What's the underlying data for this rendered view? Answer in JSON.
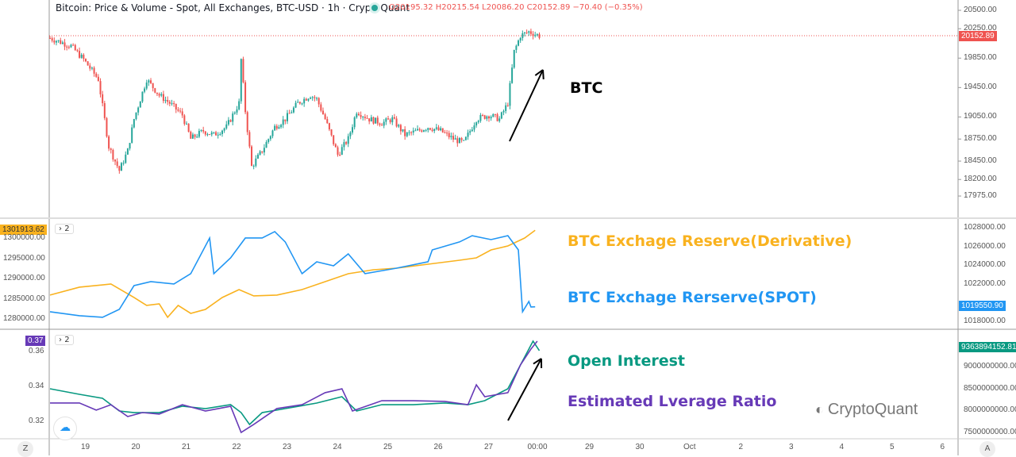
{
  "header": {
    "title": "Bitcoin: Price & Volume - Spot, All Exchanges, BTC-USD · 1h · CryptoQuant",
    "ohlc": "O20195.32 H20215.54 L20086.20 C20152.89 −70.40 (−0.35%)"
  },
  "colors": {
    "up": "#26a69a",
    "down": "#ef5350",
    "derivative": "#f9b21f",
    "spot": "#2196f3",
    "oi": "#089981",
    "ratio": "#673ab7"
  },
  "price_pane": {
    "axis": [
      "20500.00",
      "20250.00",
      "19850.00",
      "19450.00",
      "19050.00",
      "18750.00",
      "18450.00",
      "18200.00",
      "17975.00"
    ],
    "last": "20152.89",
    "annotation": "BTC",
    "keypoints": [
      [
        "18 07",
        20122
      ],
      [
        "18 17",
        20015
      ],
      [
        "18 23",
        19831
      ],
      [
        "19 06",
        19562
      ],
      [
        "19 11",
        18645
      ],
      [
        "19 16",
        18321
      ],
      [
        "19 20",
        18591
      ],
      [
        "19 23",
        19022
      ],
      [
        "20 05",
        19562
      ],
      [
        "20 11",
        19346
      ],
      [
        "20 16",
        19238
      ],
      [
        "20 22",
        19076
      ],
      [
        "21 02",
        18752
      ],
      [
        "21 08",
        18860
      ],
      [
        "21 13",
        18806
      ],
      [
        "21 19",
        18914
      ],
      [
        "22 01",
        19238
      ],
      [
        "22 02",
        19831
      ],
      [
        "22 04",
        19130
      ],
      [
        "22 07",
        18375
      ],
      [
        "22 12",
        18591
      ],
      [
        "22 18",
        18914
      ],
      [
        "22 23",
        19022
      ],
      [
        "23 05",
        19238
      ],
      [
        "23 11",
        19346
      ],
      [
        "23 14",
        19292
      ],
      [
        "23 18",
        19022
      ],
      [
        "24 00",
        18537
      ],
      [
        "24 05",
        18752
      ],
      [
        "24 09",
        19130
      ],
      [
        "24 15",
        19022
      ],
      [
        "24 21",
        18968
      ],
      [
        "25 02",
        19022
      ],
      [
        "25 08",
        18806
      ],
      [
        "25 14",
        18860
      ],
      [
        "25 19",
        18914
      ],
      [
        "26 01",
        18860
      ],
      [
        "26 07",
        18752
      ],
      [
        "26 12",
        18698
      ],
      [
        "26 18",
        19022
      ],
      [
        "27 00",
        19076
      ],
      [
        "27 05",
        19022
      ],
      [
        "27 09",
        19238
      ],
      [
        "27 12",
        19939
      ],
      [
        "27 15",
        20155
      ],
      [
        "27 19",
        20209
      ],
      [
        "28 00",
        20153
      ]
    ]
  },
  "reserve_pane": {
    "count": "2",
    "left_axis": [
      "1300000.00",
      "1295000.00",
      "1290000.00",
      "1285000.00",
      "1280000.00"
    ],
    "right_axis": [
      "1028000.00",
      "1026000.00",
      "1024000.00",
      "1022000.00",
      "1018000.00"
    ],
    "left_last": "1301913.62",
    "right_last": "1019550.90",
    "derivative_label": "BTC Exchage Reserve(Derivative)",
    "spot_label": "BTC Exchage Rerserve(SPOT)",
    "derivative": [
      [
        "18 07",
        1285900
      ],
      [
        "18 21",
        1287850
      ],
      [
        "19 12",
        1288630
      ],
      [
        "19 23",
        1285300
      ],
      [
        "20 05",
        1283340
      ],
      [
        "20 11",
        1283730
      ],
      [
        "20 15",
        1280400
      ],
      [
        "20 20",
        1283340
      ],
      [
        "21 02",
        1281380
      ],
      [
        "21 09",
        1282360
      ],
      [
        "21 17",
        1285300
      ],
      [
        "22 01",
        1287260
      ],
      [
        "22 08",
        1285700
      ],
      [
        "22 19",
        1285900
      ],
      [
        "23 07",
        1287260
      ],
      [
        "23 18",
        1289220
      ],
      [
        "24 05",
        1291180
      ],
      [
        "24 17",
        1292160
      ],
      [
        "25 04",
        1292550
      ],
      [
        "25 19",
        1293530
      ],
      [
        "26 10",
        1294510
      ],
      [
        "26 18",
        1295100
      ],
      [
        "27 01",
        1297060
      ],
      [
        "27 09",
        1298040
      ],
      [
        "27 17",
        1300000
      ],
      [
        "27 22",
        1301913.62
      ]
    ],
    "spot": [
      [
        "18 07",
        1019020
      ],
      [
        "18 21",
        1018600
      ],
      [
        "19 08",
        1018430
      ],
      [
        "19 16",
        1019280
      ],
      [
        "19 23",
        1021820
      ],
      [
        "20 07",
        1022240
      ],
      [
        "20 18",
        1021990
      ],
      [
        "21 02",
        1023090
      ],
      [
        "21 11",
        1026900
      ],
      [
        "21 13",
        1023090
      ],
      [
        "21 21",
        1024780
      ],
      [
        "22 04",
        1026900
      ],
      [
        "22 12",
        1026900
      ],
      [
        "22 18",
        1027580
      ],
      [
        "22 23",
        1026480
      ],
      [
        "23 07",
        1023090
      ],
      [
        "23 14",
        1024360
      ],
      [
        "23 22",
        1023930
      ],
      [
        "24 05",
        1025200
      ],
      [
        "24 13",
        1023090
      ],
      [
        "25 04",
        1023680
      ],
      [
        "25 19",
        1024360
      ],
      [
        "25 21",
        1025630
      ],
      [
        "26 10",
        1026480
      ],
      [
        "26 16",
        1027150
      ],
      [
        "27 01",
        1026730
      ],
      [
        "27 09",
        1027150
      ],
      [
        "27 14",
        1025630
      ],
      [
        "27 16",
        1019020
      ],
      [
        "27 19",
        1020120
      ],
      [
        "27 20",
        1019530
      ],
      [
        "27 22",
        1019550.9
      ]
    ]
  },
  "oi_pane": {
    "count": "2",
    "left_axis": [
      "0.36",
      "0.34",
      "0.32"
    ],
    "right_axis": [
      "9000000000.00",
      "8500000000.00",
      "8000000000.00",
      "7500000000.00"
    ],
    "left_last": "0.37",
    "right_last": "9363894152.81",
    "oi_label": "Open Interest",
    "ratio_label": "Estimated Lverage Ratio",
    "oi": [
      [
        "18 07",
        8491000000
      ],
      [
        "18 21",
        8364000000
      ],
      [
        "19 08",
        8273000000
      ],
      [
        "19 16",
        7982000000
      ],
      [
        "19 23",
        7945000000
      ],
      [
        "20 11",
        7945000000
      ],
      [
        "20 22",
        8091000000
      ],
      [
        "21 09",
        8036000000
      ],
      [
        "21 21",
        8127000000
      ],
      [
        "22 02",
        7945000000
      ],
      [
        "22 06",
        7673000000
      ],
      [
        "22 12",
        7945000000
      ],
      [
        "22 23",
        8036000000
      ],
      [
        "23 14",
        8164000000
      ],
      [
        "24 02",
        8309000000
      ],
      [
        "24 09",
        7982000000
      ],
      [
        "24 21",
        8127000000
      ],
      [
        "25 12",
        8127000000
      ],
      [
        "26 03",
        8164000000
      ],
      [
        "26 14",
        8127000000
      ],
      [
        "26 22",
        8218000000
      ],
      [
        "27 09",
        8491000000
      ],
      [
        "27 13",
        8855000000
      ],
      [
        "27 17",
        9218000000
      ],
      [
        "27 21",
        9582000000
      ],
      [
        "28 00",
        9363894152.81
      ]
    ],
    "ratio": [
      [
        "18 07",
        0.3305
      ],
      [
        "18 21",
        0.3305
      ],
      [
        "19 05",
        0.3264
      ],
      [
        "19 12",
        0.3295
      ],
      [
        "19 20",
        0.3227
      ],
      [
        "20 03",
        0.325
      ],
      [
        "20 11",
        0.3241
      ],
      [
        "20 22",
        0.3295
      ],
      [
        "21 09",
        0.3259
      ],
      [
        "21 21",
        0.3286
      ],
      [
        "22 02",
        0.3136
      ],
      [
        "22 08",
        0.3182
      ],
      [
        "22 19",
        0.3273
      ],
      [
        "23 07",
        0.3295
      ],
      [
        "23 18",
        0.3364
      ],
      [
        "24 02",
        0.3386
      ],
      [
        "24 07",
        0.3259
      ],
      [
        "24 21",
        0.3318
      ],
      [
        "25 12",
        0.3318
      ],
      [
        "26 03",
        0.3314
      ],
      [
        "26 14",
        0.3295
      ],
      [
        "26 18",
        0.3409
      ],
      [
        "26 22",
        0.3341
      ],
      [
        "27 09",
        0.3364
      ],
      [
        "27 15",
        0.3523
      ],
      [
        "27 20",
        0.3614
      ],
      [
        "27 23",
        0.3659
      ]
    ]
  },
  "time_axis": [
    "19",
    "20",
    "21",
    "22",
    "23",
    "24",
    "25",
    "26",
    "27",
    "00:00",
    "29",
    "30",
    "Oct",
    "2",
    "3",
    "4",
    "5",
    "6"
  ],
  "footer": {
    "left_button": "Z",
    "right_button": "A"
  },
  "watermark": "CryptoQuant"
}
